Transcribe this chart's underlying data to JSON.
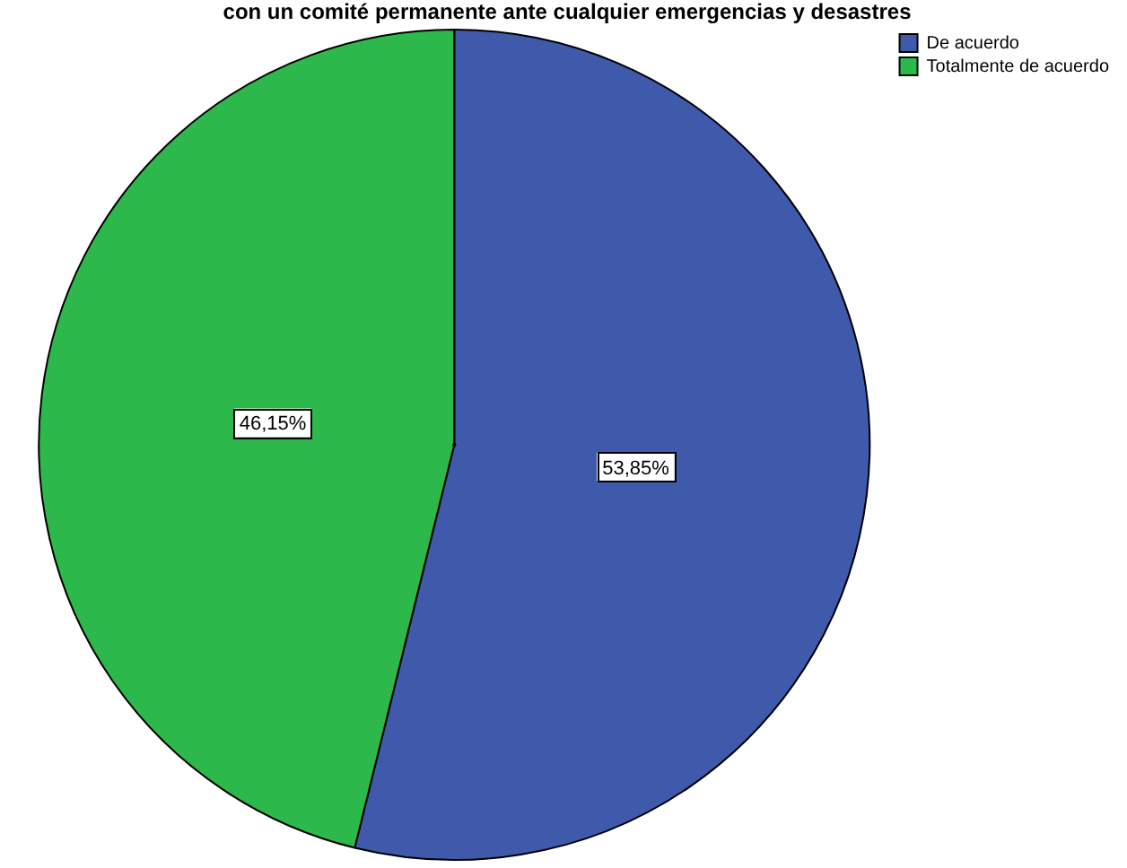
{
  "chart_data": {
    "type": "pie",
    "title": "con un comité permanente ante cualquier emergencias y desastres",
    "categories": [
      "De acuerdo",
      "Totalmente de acuerdo"
    ],
    "values": [
      53.85,
      46.15
    ],
    "colors": [
      "#3f59ab",
      "#2db84b"
    ],
    "value_labels": [
      "53,85%",
      "46,15%"
    ],
    "legend": "top right"
  }
}
